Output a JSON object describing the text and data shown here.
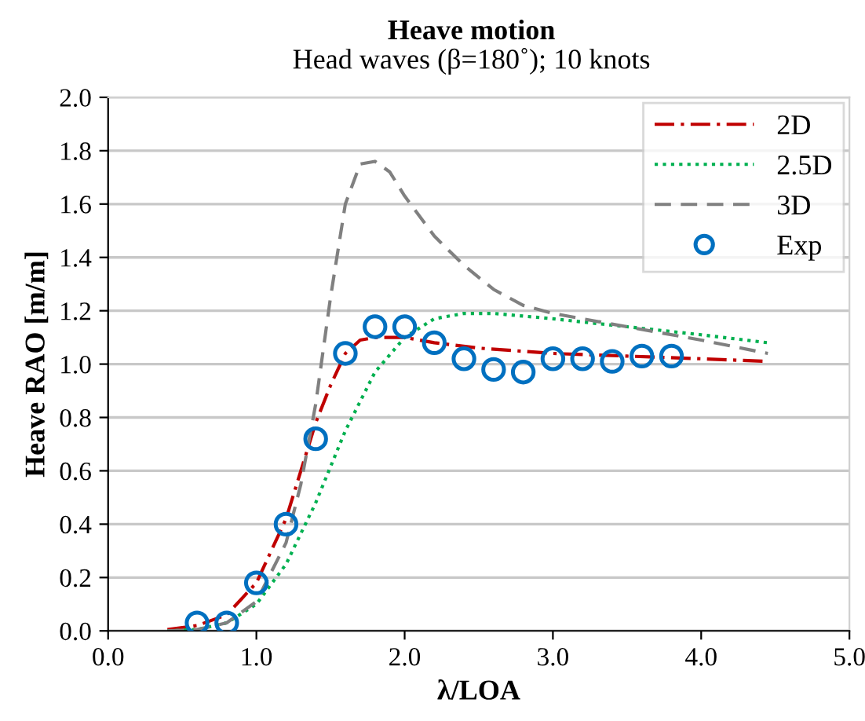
{
  "chart_data": {
    "type": "line",
    "title": "Heave motion",
    "subtitle": "Head waves (β=180˚); 10 knots",
    "xlabel": "λ/LOA",
    "ylabel": "Heave RAO [m/m]",
    "series": [
      {
        "name": "2D",
        "color": "#c00000",
        "line_style": "dashdot",
        "marker": "none",
        "x": [
          0.4,
          0.6,
          0.8,
          1.0,
          1.2,
          1.4,
          1.5,
          1.6,
          1.7,
          1.8,
          2.0,
          2.2,
          2.5,
          3.0,
          3.5,
          4.0,
          4.45
        ],
        "values": [
          0.005,
          0.02,
          0.06,
          0.18,
          0.42,
          0.78,
          0.92,
          1.04,
          1.09,
          1.1,
          1.1,
          1.08,
          1.06,
          1.04,
          1.03,
          1.02,
          1.01
        ]
      },
      {
        "name": "2.5D",
        "color": "#00b050",
        "line_style": "dotted",
        "marker": "none",
        "x": [
          0.4,
          0.6,
          0.8,
          1.0,
          1.2,
          1.4,
          1.6,
          1.8,
          2.0,
          2.2,
          2.4,
          2.6,
          3.0,
          3.5,
          4.0,
          4.45
        ],
        "values": [
          0.0,
          0.005,
          0.03,
          0.1,
          0.25,
          0.48,
          0.75,
          0.97,
          1.1,
          1.17,
          1.19,
          1.19,
          1.17,
          1.14,
          1.11,
          1.08
        ]
      },
      {
        "name": "3D",
        "color": "#808080",
        "line_style": "dashed",
        "marker": "none",
        "x": [
          0.4,
          0.6,
          0.8,
          1.0,
          1.2,
          1.3,
          1.4,
          1.5,
          1.6,
          1.7,
          1.8,
          1.9,
          2.0,
          2.2,
          2.4,
          2.6,
          2.8,
          3.0,
          3.5,
          4.0,
          4.45
        ],
        "values": [
          0.0,
          0.005,
          0.03,
          0.11,
          0.33,
          0.55,
          0.85,
          1.25,
          1.6,
          1.75,
          1.76,
          1.72,
          1.63,
          1.48,
          1.37,
          1.28,
          1.22,
          1.19,
          1.14,
          1.09,
          1.04
        ]
      },
      {
        "name": "Exp",
        "type": "scatter",
        "color": "#0070c0",
        "marker": "circle",
        "x": [
          0.6,
          0.8,
          1.0,
          1.2,
          1.4,
          1.6,
          1.8,
          2.0,
          2.2,
          2.4,
          2.6,
          2.8,
          3.0,
          3.2,
          3.4,
          3.6,
          3.8
        ],
        "values": [
          0.03,
          0.03,
          0.18,
          0.4,
          0.72,
          1.04,
          1.14,
          1.14,
          1.08,
          1.02,
          0.98,
          0.97,
          1.02,
          1.02,
          1.01,
          1.03,
          1.03
        ]
      }
    ],
    "xlim": [
      0,
      5
    ],
    "xticks": [
      {
        "value": 0,
        "label": "0.0"
      },
      {
        "value": 1,
        "label": "1.0"
      },
      {
        "value": 2,
        "label": "2.0"
      },
      {
        "value": 3,
        "label": "3.0"
      },
      {
        "value": 4,
        "label": "4.0"
      },
      {
        "value": 5,
        "label": "5.0"
      }
    ],
    "ylim": [
      0,
      2
    ],
    "yticks": [
      {
        "value": 0,
        "label": "0.0"
      },
      {
        "value": 0.2,
        "label": "0.2"
      },
      {
        "value": 0.4,
        "label": "0.4"
      },
      {
        "value": 0.6,
        "label": "0.6"
      },
      {
        "value": 0.8,
        "label": "0.8"
      },
      {
        "value": 1.0,
        "label": "1.0"
      },
      {
        "value": 1.2,
        "label": "1.2"
      },
      {
        "value": 1.4,
        "label": "1.4"
      },
      {
        "value": 1.6,
        "label": "1.6"
      },
      {
        "value": 1.8,
        "label": "1.8"
      },
      {
        "value": 2.0,
        "label": "2.0"
      }
    ],
    "grid": "y",
    "legend": "top right"
  }
}
